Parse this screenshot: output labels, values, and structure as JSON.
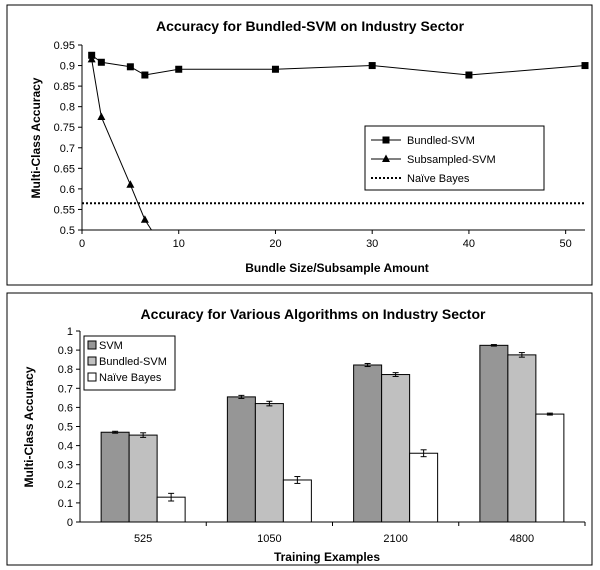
{
  "chart_data": [
    {
      "type": "line",
      "title": "Accuracy for Bundled-SVM on Industry Sector",
      "xlabel": "Bundle Size/Subsample Amount",
      "ylabel": "Multi-Class Accuracy",
      "xlim": [
        0,
        52
      ],
      "ylim": [
        0.5,
        0.95
      ],
      "x_ticks": [
        "0",
        "10",
        "20",
        "30",
        "40",
        "50"
      ],
      "y_ticks": [
        "0.5",
        "0.55",
        "0.6",
        "0.65",
        "0.7",
        "0.75",
        "0.8",
        "0.85",
        "0.9",
        "0.95"
      ],
      "grid": false,
      "legend_position": "right",
      "series": [
        {
          "name": "Bundled-SVM",
          "marker": "square",
          "style": "solid",
          "x": [
            1,
            2,
            5,
            6.5,
            10,
            20,
            30,
            40,
            52
          ],
          "y": [
            0.925,
            0.908,
            0.897,
            0.877,
            0.891,
            0.891,
            0.9,
            0.877,
            0.9
          ]
        },
        {
          "name": "Subsampled-SVM",
          "marker": "triangle",
          "style": "solid",
          "x": [
            1,
            2,
            5,
            6.5,
            8
          ],
          "y": [
            0.915,
            0.775,
            0.61,
            0.525,
            0.47
          ]
        },
        {
          "name": "Naïve Bayes",
          "marker": "none",
          "style": "dotted",
          "x": [
            0,
            52
          ],
          "y": [
            0.565,
            0.565
          ]
        }
      ]
    },
    {
      "type": "bar",
      "title": "Accuracy for Various Algorithms on Industry Sector",
      "xlabel": "Training Examples",
      "ylabel": "Multi-Class Accuracy",
      "categories": [
        "525",
        "1050",
        "2100",
        "4800"
      ],
      "ylim": [
        0,
        1
      ],
      "y_ticks": [
        "0",
        "0.1",
        "0.2",
        "0.3",
        "0.4",
        "0.5",
        "0.6",
        "0.7",
        "0.8",
        "0.9",
        "1"
      ],
      "grid": false,
      "legend_position": "top-left",
      "series": [
        {
          "name": "SVM",
          "color": "#969696",
          "values": [
            0.47,
            0.655,
            0.822,
            0.925
          ],
          "errors": [
            0.005,
            0.008,
            0.008,
            0.004
          ]
        },
        {
          "name": "Bundled-SVM",
          "color": "#c0c0c0",
          "values": [
            0.455,
            0.62,
            0.772,
            0.875
          ],
          "errors": [
            0.012,
            0.012,
            0.01,
            0.012
          ]
        },
        {
          "name": "Naïve Bayes",
          "color": "#ffffff",
          "values": [
            0.13,
            0.22,
            0.36,
            0.565
          ],
          "errors": [
            0.02,
            0.018,
            0.018,
            0.005
          ]
        }
      ]
    }
  ]
}
